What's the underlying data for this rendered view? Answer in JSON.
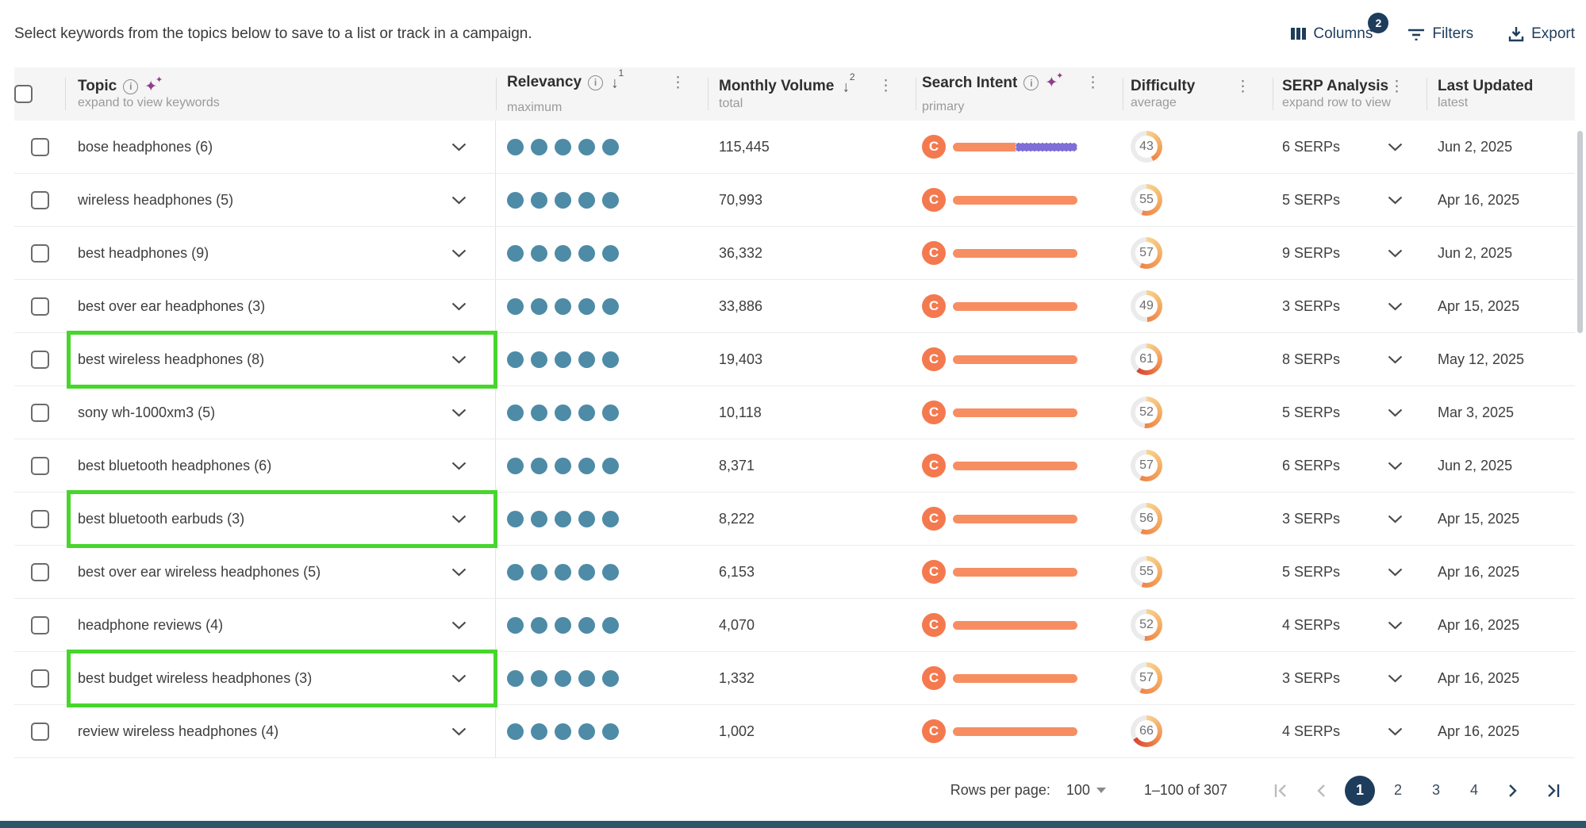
{
  "toolbar": {
    "instruction": "Select keywords from the topics below to save to a list or track in a campaign.",
    "columns_label": "Columns",
    "columns_badge": "2",
    "filters_label": "Filters",
    "export_label": "Export"
  },
  "table": {
    "columns": [
      {
        "label": "Topic",
        "sub": "expand to view keywords"
      },
      {
        "label": "Relevancy",
        "sub": "maximum",
        "sort_order": "1"
      },
      {
        "label": "Monthly Volume",
        "sub": "total",
        "sort_order": "2"
      },
      {
        "label": "Search Intent",
        "sub": "primary"
      },
      {
        "label": "Difficulty",
        "sub": "average"
      },
      {
        "label": "SERP Analysis",
        "sub": "expand row to view"
      },
      {
        "label": "Last Updated",
        "sub": "latest"
      }
    ],
    "rows": [
      {
        "topic": "bose headphones (6)",
        "relevancy": 5,
        "volume": "115,445",
        "intent_label": "C",
        "intent_segments": [
          {
            "color": "orange",
            "pct": 50
          },
          {
            "color": "purple",
            "pct": 50
          }
        ],
        "difficulty": 43,
        "serps": "6 SERPs",
        "updated": "Jun 2, 2025",
        "highlight": false
      },
      {
        "topic": "wireless headphones (5)",
        "relevancy": 5,
        "volume": "70,993",
        "intent_label": "C",
        "intent_segments": [
          {
            "color": "orange",
            "pct": 100
          }
        ],
        "difficulty": 55,
        "serps": "5 SERPs",
        "updated": "Apr 16, 2025",
        "highlight": false
      },
      {
        "topic": "best headphones (9)",
        "relevancy": 5,
        "volume": "36,332",
        "intent_label": "C",
        "intent_segments": [
          {
            "color": "orange",
            "pct": 100
          }
        ],
        "difficulty": 57,
        "serps": "9 SERPs",
        "updated": "Jun 2, 2025",
        "highlight": false
      },
      {
        "topic": "best over ear headphones (3)",
        "relevancy": 5,
        "volume": "33,886",
        "intent_label": "C",
        "intent_segments": [
          {
            "color": "orange",
            "pct": 100
          }
        ],
        "difficulty": 49,
        "serps": "3 SERPs",
        "updated": "Apr 15, 2025",
        "highlight": false
      },
      {
        "topic": "best wireless headphones (8)",
        "relevancy": 5,
        "volume": "19,403",
        "intent_label": "C",
        "intent_segments": [
          {
            "color": "orange",
            "pct": 100
          }
        ],
        "difficulty": 61,
        "serps": "8 SERPs",
        "updated": "May 12, 2025",
        "highlight": true
      },
      {
        "topic": "sony wh-1000xm3 (5)",
        "relevancy": 5,
        "volume": "10,118",
        "intent_label": "C",
        "intent_segments": [
          {
            "color": "orange",
            "pct": 100
          }
        ],
        "difficulty": 52,
        "serps": "5 SERPs",
        "updated": "Mar 3, 2025",
        "highlight": false
      },
      {
        "topic": "best bluetooth headphones (6)",
        "relevancy": 5,
        "volume": "8,371",
        "intent_label": "C",
        "intent_segments": [
          {
            "color": "orange",
            "pct": 100
          }
        ],
        "difficulty": 57,
        "serps": "6 SERPs",
        "updated": "Jun 2, 2025",
        "highlight": false
      },
      {
        "topic": "best bluetooth earbuds (3)",
        "relevancy": 5,
        "volume": "8,222",
        "intent_label": "C",
        "intent_segments": [
          {
            "color": "orange",
            "pct": 100
          }
        ],
        "difficulty": 56,
        "serps": "3 SERPs",
        "updated": "Apr 15, 2025",
        "highlight": true
      },
      {
        "topic": "best over ear wireless headphones (5)",
        "relevancy": 5,
        "volume": "6,153",
        "intent_label": "C",
        "intent_segments": [
          {
            "color": "orange",
            "pct": 100
          }
        ],
        "difficulty": 55,
        "serps": "5 SERPs",
        "updated": "Apr 16, 2025",
        "highlight": false
      },
      {
        "topic": "headphone reviews (4)",
        "relevancy": 5,
        "volume": "4,070",
        "intent_label": "C",
        "intent_segments": [
          {
            "color": "orange",
            "pct": 100
          }
        ],
        "difficulty": 52,
        "serps": "4 SERPs",
        "updated": "Apr 16, 2025",
        "highlight": false
      },
      {
        "topic": "best budget wireless headphones (3)",
        "relevancy": 5,
        "volume": "1,332",
        "intent_label": "C",
        "intent_segments": [
          {
            "color": "orange",
            "pct": 100
          }
        ],
        "difficulty": 57,
        "serps": "3 SERPs",
        "updated": "Apr 16, 2025",
        "highlight": true
      },
      {
        "topic": "review wireless headphones (4)",
        "relevancy": 5,
        "volume": "1,002",
        "intent_label": "C",
        "intent_segments": [
          {
            "color": "orange",
            "pct": 100
          }
        ],
        "difficulty": 66,
        "serps": "4 SERPs",
        "updated": "Apr 16, 2025",
        "highlight": false
      }
    ]
  },
  "pagination": {
    "rows_per_page_label": "Rows per page:",
    "rows_per_page_value": "100",
    "range_text": "1–100 of 307",
    "pages": [
      "1",
      "2",
      "3",
      "4"
    ],
    "active_page": "1"
  },
  "colors": {
    "navy": "#1e3d5c",
    "relevancy_dot": "#4e8ba7",
    "intent_badge_orange": "#f5794e",
    "intent_bar_orange": "#f78e62",
    "intent_bar_purple": "#7e6ed6",
    "difficulty_low": "#f8d491",
    "difficulty_mid": "#ef8448",
    "difficulty_high": "#d74630",
    "highlight_green": "#46d62c",
    "footer_bar": "#2f5568"
  }
}
